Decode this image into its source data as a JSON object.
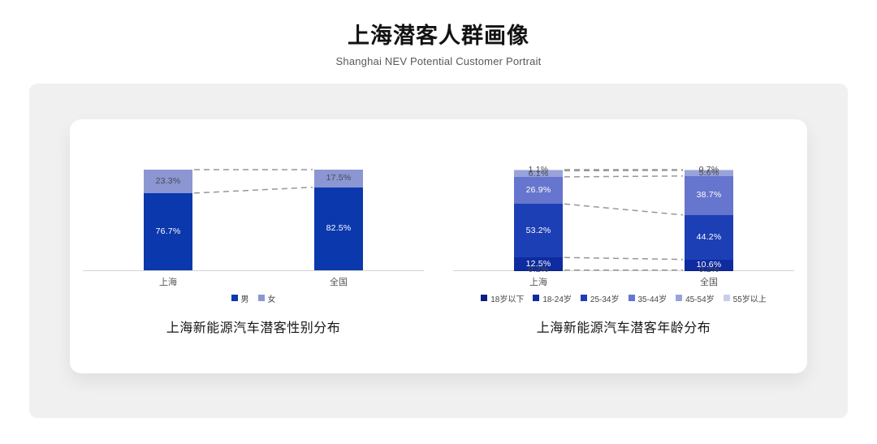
{
  "header": {
    "title": "上海潜客人群画像",
    "subtitle": "Shanghai NEV Potential Customer Portrait"
  },
  "chart_data": [
    {
      "type": "bar",
      "stacked": true,
      "orientation": "vertical",
      "categories": [
        "上海",
        "全国"
      ],
      "series": [
        {
          "name": "男",
          "values": [
            76.7,
            82.5
          ],
          "color": "#0b38ad"
        },
        {
          "name": "女",
          "values": [
            23.3,
            17.5
          ],
          "color": "#8b96d3"
        }
      ],
      "unit": "%",
      "ylim": [
        0,
        100
      ],
      "grid": false,
      "legend_position": "bottom",
      "connector_lines": "dashed",
      "caption": "上海新能源汽车潜客性别分布"
    },
    {
      "type": "bar",
      "stacked": true,
      "orientation": "vertical",
      "categories": [
        "上海",
        "全国"
      ],
      "series": [
        {
          "name": "18岁以下",
          "values": [
            0.2,
            0.2
          ],
          "color": "#0a1f85"
        },
        {
          "name": "18-24岁",
          "values": [
            12.5,
            10.6
          ],
          "color": "#0e2b9f"
        },
        {
          "name": "25-34岁",
          "values": [
            53.2,
            44.2
          ],
          "color": "#1d3fb5"
        },
        {
          "name": "35-44岁",
          "values": [
            26.9,
            38.7
          ],
          "color": "#6675cd"
        },
        {
          "name": "45-54岁",
          "values": [
            6.1,
            5.6
          ],
          "color": "#98a3dc"
        },
        {
          "name": "55岁以上",
          "values": [
            1.1,
            0.7
          ],
          "color": "#c8cdea"
        }
      ],
      "unit": "%",
      "ylim": [
        0,
        100
      ],
      "grid": false,
      "legend_position": "bottom",
      "connector_lines": "dashed",
      "caption": "上海新能源汽车潜客年龄分布"
    }
  ]
}
